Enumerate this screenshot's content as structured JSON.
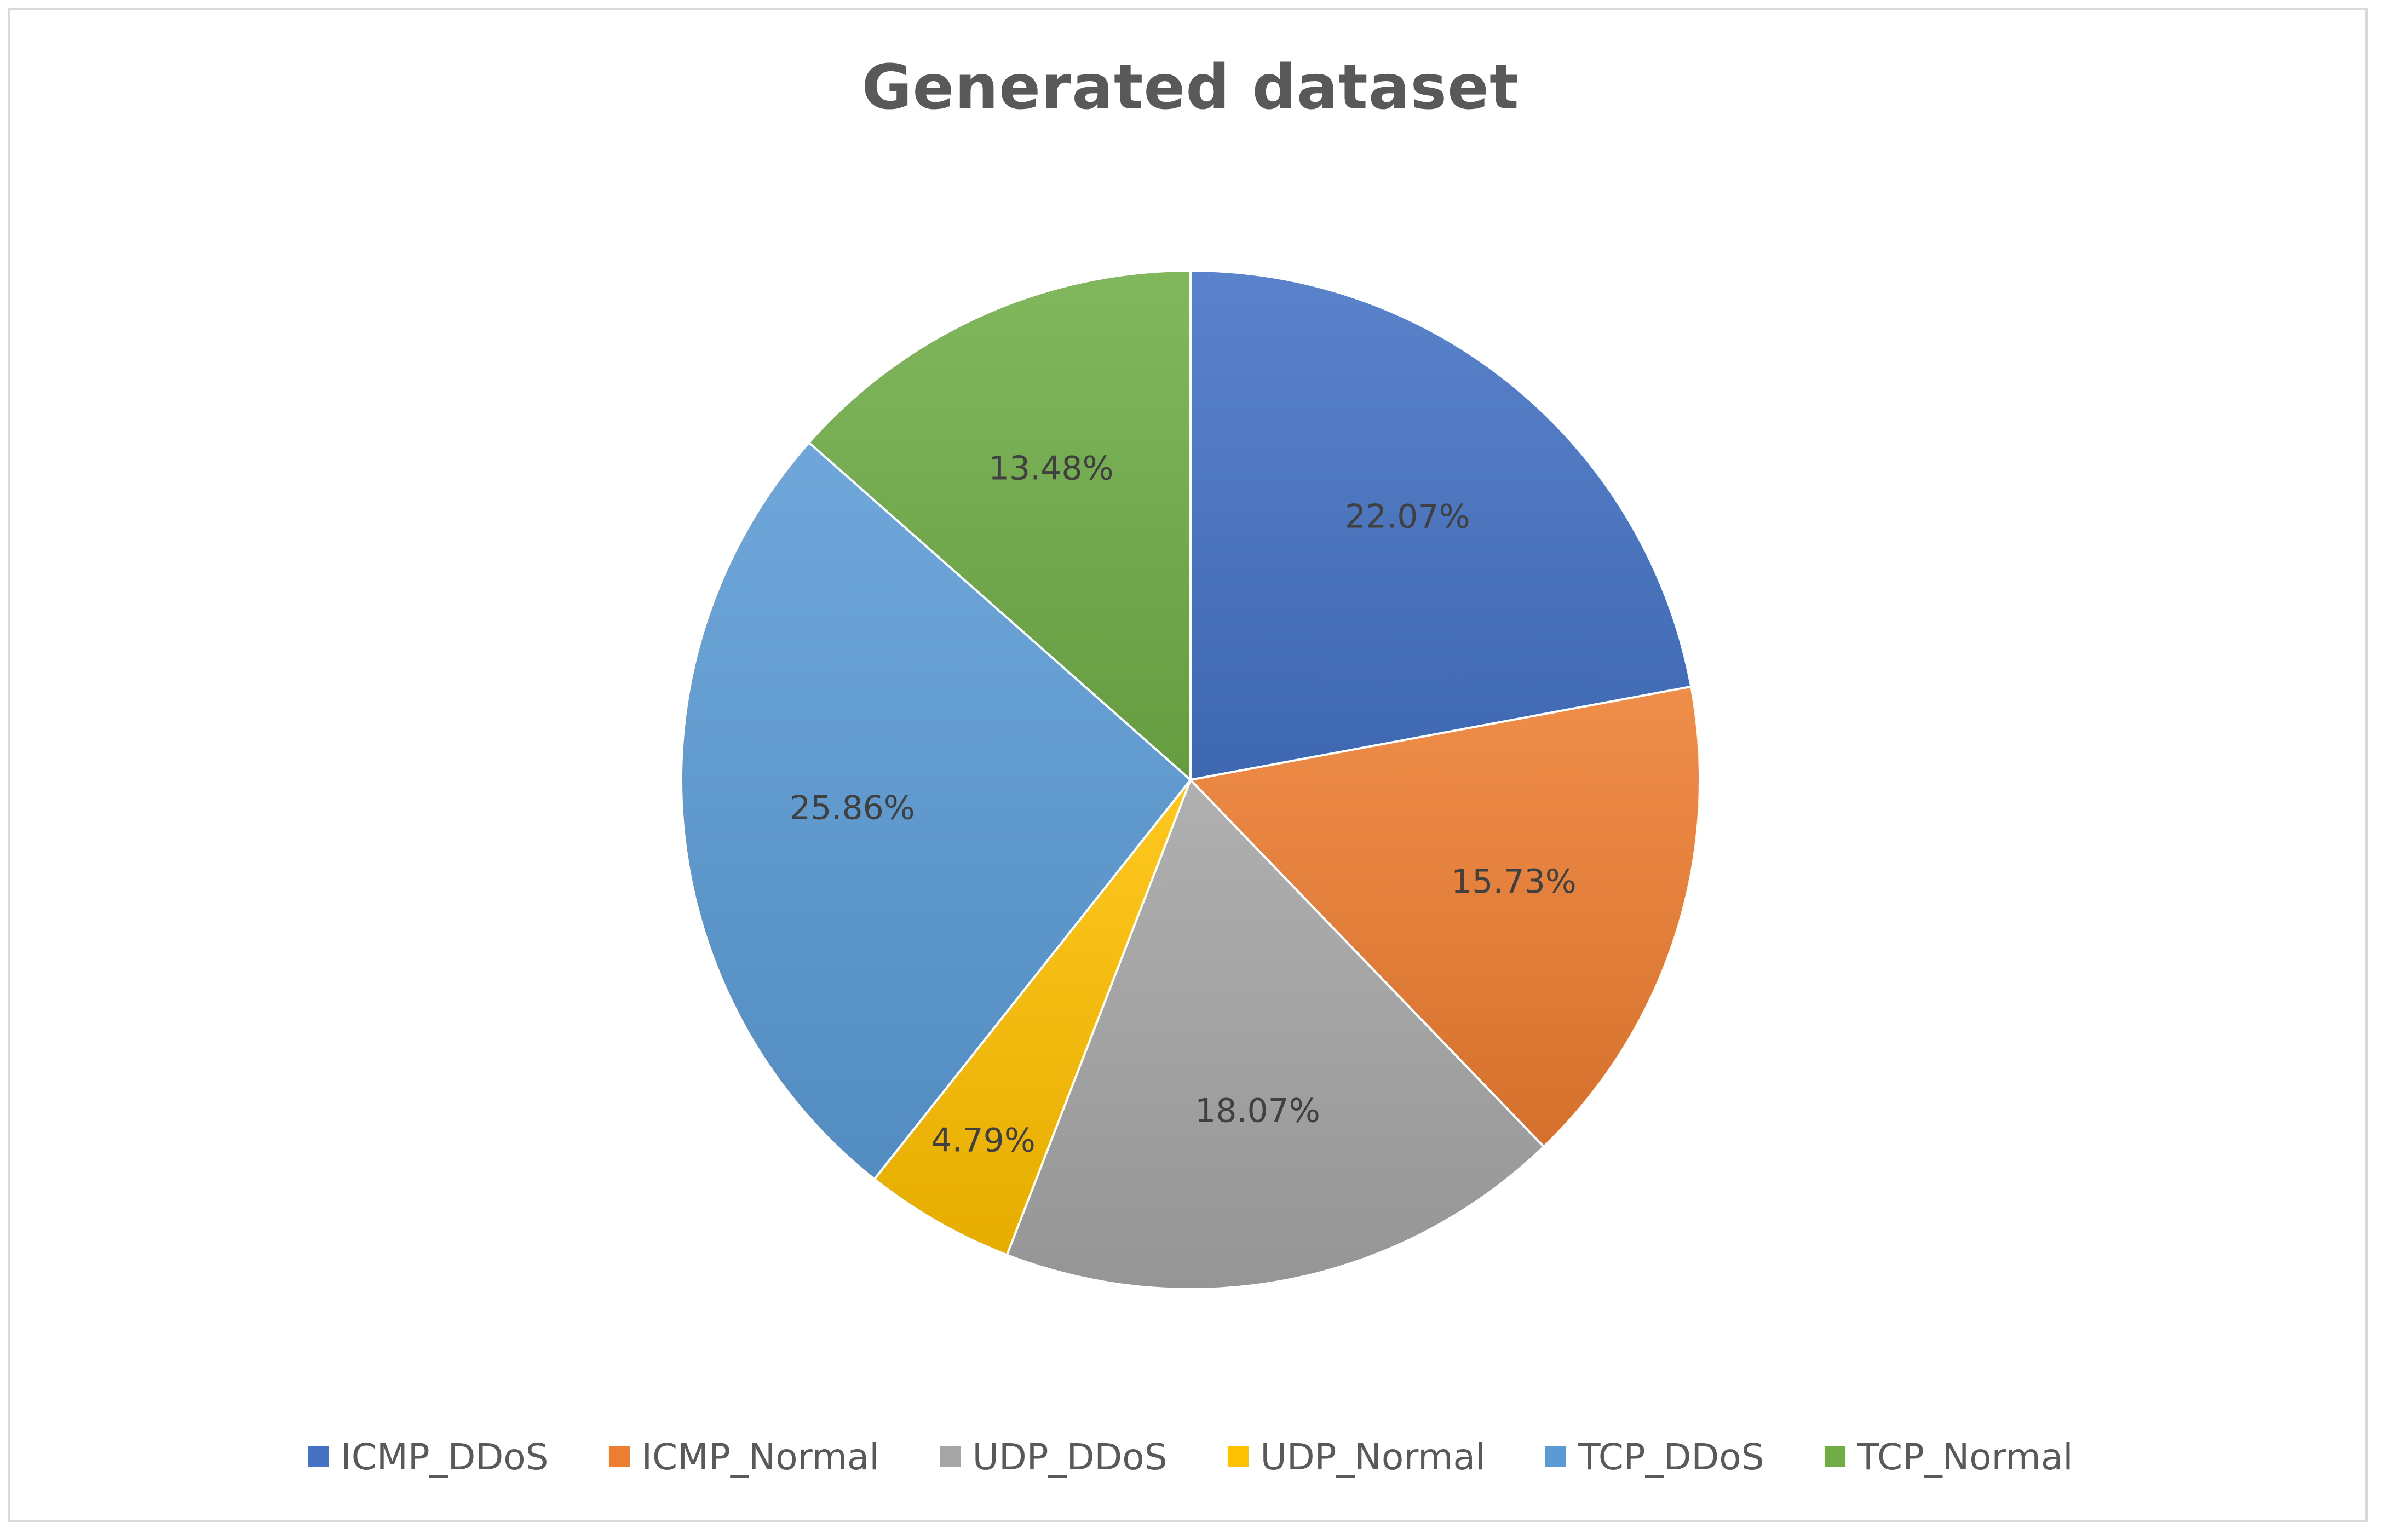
{
  "chart_data": {
    "type": "pie",
    "title": "Generated dataset",
    "categories": [
      "ICMP_DDoS",
      "ICMP_Normal",
      "UDP_DDoS",
      "UDP_Normal",
      "TCP_DDoS",
      "TCP_Normal"
    ],
    "values": [
      22.07,
      15.73,
      18.07,
      4.79,
      25.86,
      13.48
    ],
    "data_labels": [
      "22.07%",
      "15.73%",
      "18.07%",
      "4.79%",
      "25.86%",
      "13.48%"
    ],
    "colors": [
      "#4472C4",
      "#ED7D31",
      "#A5A5A5",
      "#FFC000",
      "#5B9BD5",
      "#70AD47"
    ],
    "start_angle": "12 o'clock",
    "direction": "clockwise",
    "legend_position": "bottom"
  }
}
